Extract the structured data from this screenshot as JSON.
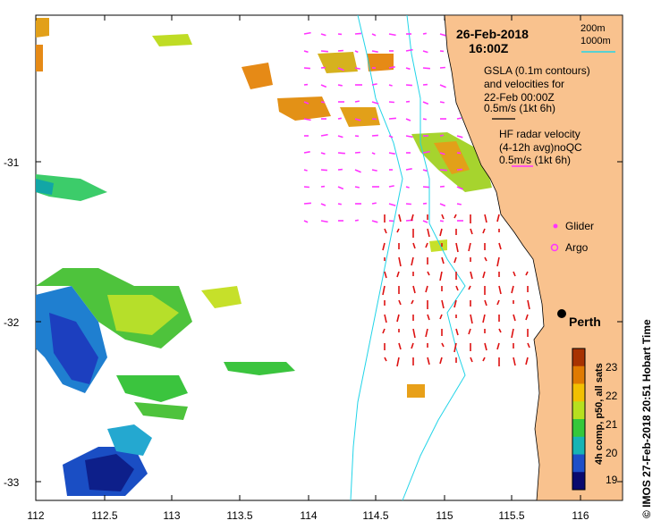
{
  "header": {
    "date": "26-Feb-2018",
    "time": "16:00Z"
  },
  "contours_legend": {
    "line1": "200m",
    "line2": "1000m"
  },
  "gsla_legend": {
    "title": "GSLA (0.1m contours)\nand velocities for\n22-Feb 00:00Z",
    "scale": "0.5m/s (1kt 6h)"
  },
  "hf_legend": {
    "title": "HF radar velocity\n(4-12h avg)noQC",
    "scale": "0.5m/s (1kt 6h)"
  },
  "markers": {
    "glider": "Glider",
    "argo": "Argo",
    "city": "Perth"
  },
  "colorbar": {
    "label": "4h comp, p50, all sats",
    "ticks": [
      "23",
      "22",
      "21",
      "20",
      "19"
    ],
    "colors": [
      "#0a0a6e",
      "#1e4fc8",
      "#17b4b4",
      "#35c83a",
      "#b7e01e",
      "#f2c000",
      "#e07a00",
      "#a83200"
    ]
  },
  "axes": {
    "x_ticks": [
      "112",
      "112.5",
      "113",
      "113.5",
      "114",
      "114.5",
      "115",
      "115.5",
      "116"
    ],
    "y_ticks": [
      "-31",
      "-32",
      "-33"
    ]
  },
  "credit": "© IMOS 27-Feb-2018 20:51 Hobart Time",
  "colors": {
    "land": "#f9c28e",
    "gsla_arrow": "#ff33ff",
    "hf_arrow": "#dd1111",
    "contour": "#22d4e8"
  }
}
